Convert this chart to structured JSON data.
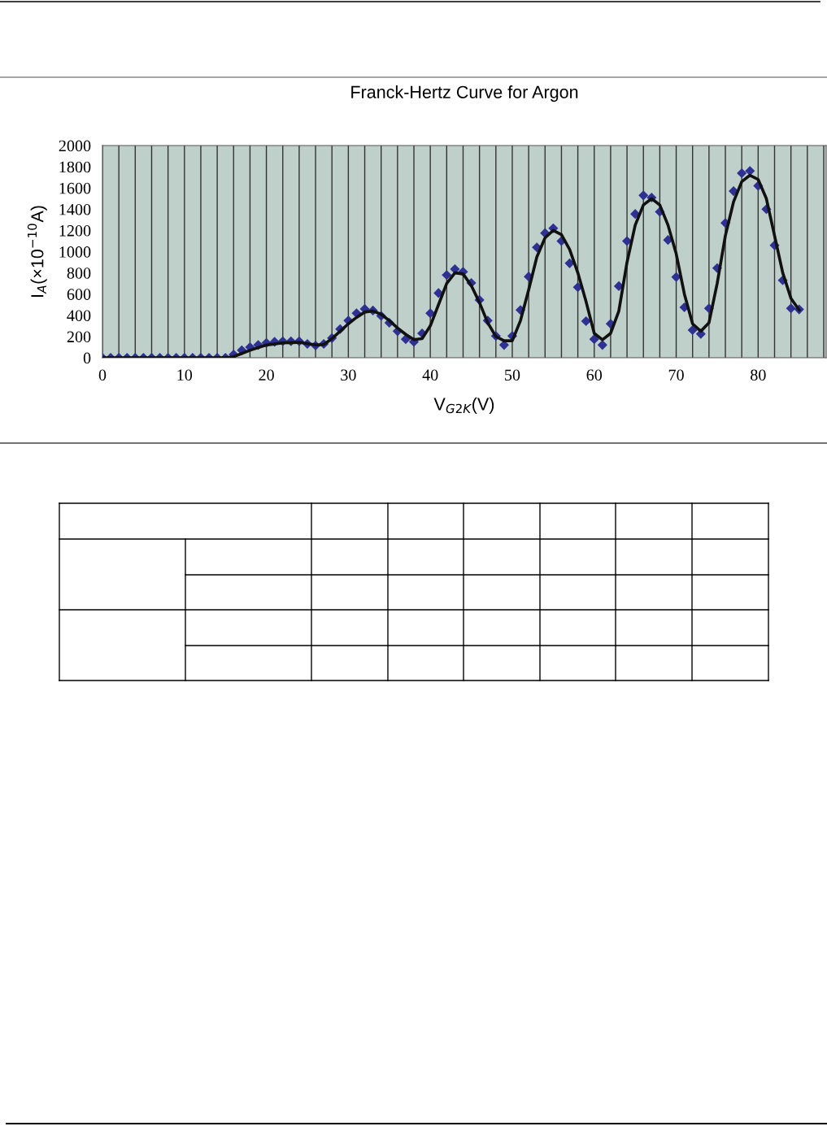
{
  "chart_data": {
    "type": "scatter",
    "title": "Franck-Hertz Curve for Argon",
    "xlabel": "V$_{G2K}$(V)",
    "ylabel": "I$_{A}$(×10$^{−10}$A)",
    "xlim": [
      0,
      88.3
    ],
    "ylim": [
      0,
      2000
    ],
    "xticks": [
      0,
      {
        "value": 2,
        "label": null
      },
      {
        "value": 4,
        "label": null
      },
      {
        "value": 6,
        "label": null
      },
      {
        "value": 8,
        "label": null
      },
      10,
      {
        "value": 12,
        "label": null
      },
      {
        "value": 14,
        "label": null
      },
      {
        "value": 16,
        "label": null
      },
      {
        "value": 18,
        "label": null
      },
      20,
      {
        "value": 22,
        "label": null
      },
      {
        "value": 24,
        "label": null
      },
      {
        "value": 26,
        "label": null
      },
      {
        "value": 28,
        "label": null
      },
      30,
      {
        "value": 32,
        "label": null
      },
      {
        "value": 34,
        "label": null
      },
      {
        "value": 36,
        "label": null
      },
      {
        "value": 38,
        "label": null
      },
      40,
      {
        "value": 42,
        "label": null
      },
      {
        "value": 44,
        "label": null
      },
      {
        "value": 46,
        "label": null
      },
      {
        "value": 48,
        "label": null
      },
      50,
      {
        "value": 52,
        "label": null
      },
      {
        "value": 54,
        "label": null
      },
      {
        "value": 56,
        "label": null
      },
      {
        "value": 58,
        "label": null
      },
      60,
      {
        "value": 62,
        "label": null
      },
      {
        "value": 64,
        "label": null
      },
      {
        "value": 66,
        "label": null
      },
      {
        "value": 68,
        "label": null
      },
      70,
      {
        "value": 72,
        "label": null
      },
      {
        "value": 74,
        "label": null
      },
      {
        "value": 76,
        "label": null
      },
      {
        "value": 78,
        "label": null
      },
      80,
      {
        "value": 82,
        "label": null
      },
      {
        "value": 84,
        "label": null
      },
      {
        "value": 86,
        "label": null
      },
      {
        "value": 88,
        "label": null
      }
    ],
    "yticks": [
      0,
      200,
      400,
      600,
      800,
      1000,
      1200,
      1400,
      1600,
      1800,
      2000
    ],
    "grid": "x",
    "legend": false,
    "series": [
      {
        "marker": "diamond",
        "color": "#2e3192",
        "x": [
          0,
          1,
          2,
          3,
          4,
          5,
          6,
          7,
          8,
          9,
          10,
          11,
          12,
          13,
          14,
          15,
          16,
          17,
          18,
          19,
          20,
          21,
          22,
          23,
          24,
          25,
          26,
          27,
          28,
          29,
          30,
          31,
          32,
          33,
          34,
          35,
          36,
          37,
          38,
          39,
          40,
          41,
          42,
          43,
          44,
          45,
          46,
          47,
          48,
          49,
          50,
          51,
          52,
          53,
          54,
          55,
          56,
          57,
          58,
          59,
          60,
          61,
          62,
          63,
          64,
          65,
          66,
          67,
          68,
          69,
          70,
          71,
          72,
          73,
          74,
          75,
          76,
          77,
          78,
          79,
          80,
          81,
          82,
          83,
          84,
          85
        ],
        "values": [
          0,
          0,
          0,
          0,
          0,
          0,
          0,
          0,
          0,
          0,
          0,
          0,
          0,
          0,
          0,
          0,
          30,
          70,
          100,
          120,
          140,
          150,
          155,
          155,
          155,
          130,
          115,
          130,
          185,
          270,
          350,
          420,
          460,
          445,
          395,
          330,
          250,
          175,
          150,
          230,
          420,
          610,
          780,
          835,
          810,
          705,
          545,
          350,
          205,
          120,
          205,
          450,
          765,
          1040,
          1175,
          1220,
          1100,
          890,
          665,
          345,
          175,
          120,
          320,
          675,
          1100,
          1355,
          1530,
          1510,
          1375,
          1110,
          760,
          475,
          260,
          225,
          465,
          845,
          1270,
          1570,
          1740,
          1760,
          1620,
          1400,
          1060,
          730,
          465,
          455
        ]
      },
      {
        "type": "line",
        "marker": "none",
        "line_style": "solid",
        "color": "#111111",
        "x": [
          0,
          15,
          16,
          17,
          18,
          20,
          22,
          24,
          26,
          27,
          28,
          29,
          30,
          31,
          32,
          33,
          34,
          35,
          36,
          37,
          38,
          39,
          40,
          41,
          42,
          43,
          44,
          45,
          46,
          47,
          48,
          49,
          50,
          51,
          52,
          53,
          54,
          55,
          56,
          57,
          58,
          59,
          60,
          61,
          62,
          63,
          64,
          65,
          66,
          67,
          68,
          69,
          70,
          71,
          72,
          73,
          74,
          75,
          76,
          77,
          78,
          79,
          80,
          81,
          82,
          83,
          84,
          85
        ],
        "values": [
          0,
          0,
          10,
          40,
          70,
          120,
          140,
          145,
          120,
          125,
          180,
          250,
          320,
          380,
          430,
          440,
          410,
          350,
          280,
          220,
          170,
          180,
          300,
          500,
          700,
          800,
          790,
          680,
          520,
          330,
          200,
          160,
          160,
          350,
          640,
          950,
          1130,
          1200,
          1160,
          1020,
          800,
          530,
          230,
          170,
          230,
          440,
          900,
          1250,
          1440,
          1500,
          1440,
          1250,
          980,
          600,
          320,
          250,
          330,
          700,
          1150,
          1470,
          1660,
          1720,
          1680,
          1500,
          1150,
          800,
          560,
          450
        ]
      }
    ]
  }
}
